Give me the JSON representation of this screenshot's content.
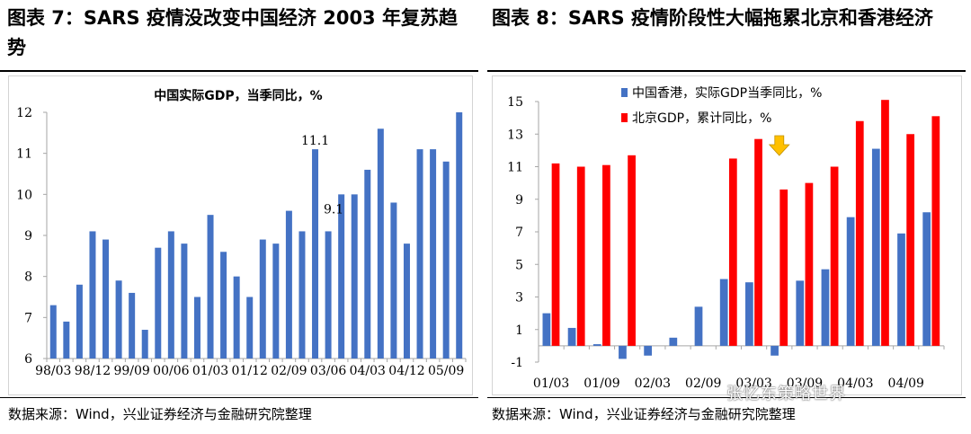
{
  "figure1": {
    "title": "图表 7：SARS 疫情没改变中国经济 2003 年复苏趋势",
    "source": "数据来源：Wind，兴业证券经济与金融研究院整理"
  },
  "figure2": {
    "title": "图表 8：SARS 疫情阶段性大幅拖累北京和香港经济",
    "source": "数据来源：Wind，兴业证券经济与金融研究院整理"
  },
  "watermark": "张忆东策略世界",
  "chart_data": [
    {
      "type": "bar",
      "title": "中国实际GDP，当季同比，%",
      "x_tick_labels": [
        "98/03",
        "98/12",
        "99/09",
        "00/06",
        "01/03",
        "01/12",
        "02/09",
        "03/06",
        "04/03",
        "04/12",
        "05/09"
      ],
      "categories": [
        "98/03",
        "98/06",
        "98/09",
        "98/12",
        "99/03",
        "99/06",
        "99/09",
        "99/12",
        "00/03",
        "00/06",
        "00/09",
        "00/12",
        "01/03",
        "01/06",
        "01/09",
        "01/12",
        "02/03",
        "02/06",
        "02/09",
        "02/12",
        "03/03",
        "03/06",
        "03/09",
        "03/12",
        "04/03",
        "04/06",
        "04/09",
        "04/12",
        "05/03",
        "05/06",
        "05/09",
        "05/12"
      ],
      "values": [
        7.3,
        6.9,
        7.8,
        9.1,
        8.9,
        7.9,
        7.6,
        6.7,
        8.7,
        9.1,
        8.8,
        7.5,
        9.5,
        8.6,
        8.0,
        7.5,
        8.9,
        8.8,
        9.6,
        9.1,
        11.1,
        9.1,
        10.0,
        10.0,
        10.6,
        11.6,
        9.8,
        8.8,
        11.1,
        11.1,
        10.8,
        12.0
      ],
      "data_labels": [
        {
          "category": "03/03",
          "text": "11.1"
        },
        {
          "category": "03/06",
          "text": "9.1"
        }
      ],
      "ylim": [
        6,
        12
      ],
      "yticks": [
        6,
        7,
        8,
        9,
        10,
        11,
        12
      ],
      "color": "#4472c4",
      "grid": false
    },
    {
      "type": "bar",
      "x_tick_labels": [
        "01/03",
        "01/09",
        "02/03",
        "02/09",
        "03/03",
        "03/09",
        "04/03",
        "04/09"
      ],
      "categories": [
        "01/03",
        "01/06",
        "01/09",
        "01/12",
        "02/03",
        "02/06",
        "02/09",
        "02/12",
        "03/03",
        "03/06",
        "03/09",
        "03/12",
        "04/03",
        "04/06",
        "04/09",
        "04/12"
      ],
      "series": [
        {
          "name": "中国香港，实际GDP当季同比，%",
          "color": "#4472c4",
          "values": [
            2.0,
            1.1,
            0.1,
            -0.8,
            -0.6,
            0.5,
            2.4,
            4.1,
            3.9,
            -0.6,
            4.0,
            4.7,
            7.9,
            12.1,
            6.9,
            8.2
          ]
        },
        {
          "name": "北京GDP，累计同比，%",
          "color": "#ff0000",
          "values": [
            11.2,
            11.0,
            11.1,
            11.7,
            null,
            null,
            null,
            11.5,
            12.7,
            9.6,
            10.0,
            11.0,
            13.8,
            15.1,
            13.0,
            14.1
          ]
        }
      ],
      "ylim": [
        -1,
        15
      ],
      "yticks": [
        -1,
        1,
        3,
        5,
        7,
        9,
        11,
        13,
        15
      ],
      "legend_position": "top",
      "annotation": {
        "type": "down-arrow",
        "category": "03/06",
        "color": "#ffc000"
      },
      "grid": false
    }
  ]
}
